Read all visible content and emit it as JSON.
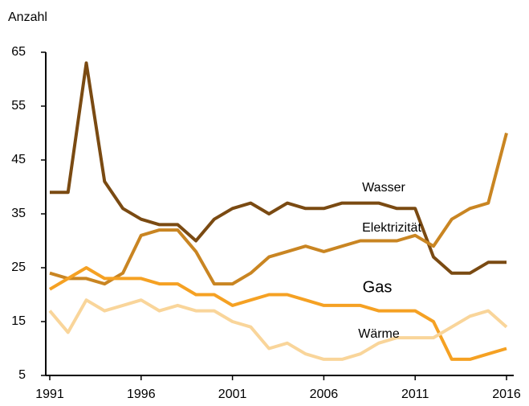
{
  "chart_data": {
    "type": "line",
    "y_axis_label": "Anzahl",
    "x": [
      1991,
      1992,
      1993,
      1994,
      1995,
      1996,
      1997,
      1998,
      1999,
      2000,
      2001,
      2002,
      2003,
      2004,
      2005,
      2006,
      2007,
      2008,
      2009,
      2010,
      2011,
      2012,
      2013,
      2014,
      2015,
      2016
    ],
    "xlim": [
      1991,
      2016
    ],
    "xticks": [
      1991,
      1996,
      2001,
      2006,
      2011,
      2016
    ],
    "ylim": [
      5,
      65
    ],
    "yticks": [
      5,
      15,
      25,
      35,
      45,
      55,
      65
    ],
    "grid": false,
    "series": [
      {
        "name": "Wasser",
        "color": "#7a4a12",
        "values": [
          39,
          39,
          63,
          41,
          36,
          34,
          33,
          33,
          30,
          34,
          36,
          37,
          35,
          37,
          36,
          36,
          37,
          37,
          37,
          36,
          36,
          27,
          24,
          24,
          26,
          26
        ]
      },
      {
        "name": "Elektrizität",
        "color": "#c98522",
        "values": [
          24,
          23,
          23,
          22,
          24,
          31,
          32,
          32,
          28,
          22,
          22,
          24,
          27,
          28,
          29,
          28,
          29,
          30,
          30,
          30,
          31,
          29,
          34,
          36,
          37,
          50
        ]
      },
      {
        "name": "Gas",
        "color": "#f5a123",
        "values": [
          21,
          23,
          25,
          23,
          23,
          23,
          22,
          22,
          20,
          20,
          18,
          19,
          20,
          20,
          19,
          18,
          18,
          18,
          17,
          17,
          17,
          15,
          8,
          8,
          9,
          10
        ]
      },
      {
        "name": "Wärme",
        "color": "#f9d59a",
        "values": [
          17,
          13,
          19,
          17,
          18,
          19,
          17,
          18,
          17,
          17,
          15,
          14,
          10,
          11,
          9,
          8,
          8,
          9,
          11,
          12,
          12,
          12,
          14,
          16,
          17,
          14
        ]
      }
    ]
  }
}
